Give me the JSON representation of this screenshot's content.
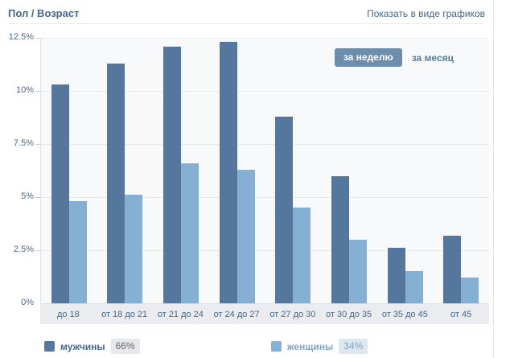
{
  "header": {
    "title": "Пол / Возраст",
    "link_label": "Показать в виде графиков"
  },
  "toolbar": {
    "week_label": "за неделю",
    "month_label": "за месяц",
    "active_period": "за неделю"
  },
  "chart_data": {
    "type": "bar",
    "title": "Пол / Возраст",
    "categories": [
      "до 18",
      "от 18 до 21",
      "от 21 до 24",
      "от 24 до 27",
      "от 27 до 30",
      "от 30 до 35",
      "от 35 до 45",
      "от 45"
    ],
    "series": [
      {
        "name": "мужчины",
        "color": "#55779d",
        "total_share": "66%",
        "values": [
          10.3,
          11.3,
          12.1,
          12.3,
          8.8,
          6.0,
          2.6,
          3.2
        ]
      },
      {
        "name": "женщины",
        "color": "#85afd3",
        "total_share": "34%",
        "values": [
          4.8,
          5.1,
          6.6,
          6.3,
          4.5,
          3.0,
          1.5,
          1.2
        ]
      }
    ],
    "xlabel": "",
    "ylabel": "",
    "ylim": [
      0,
      12.5
    ],
    "yticks": [
      "12.5%",
      "10%",
      "7.5%",
      "5%",
      "2.5%",
      "0%"
    ],
    "grid": "horizontal",
    "legend_position": "bottom"
  },
  "legend": {
    "items": [
      {
        "label": "мужчины",
        "value": "66%",
        "swatch": "#55779d",
        "badge_bg": "#e7e8ec",
        "badge_color": "#6b6b6b",
        "label_color": "#45688e"
      },
      {
        "label": "женщины",
        "value": "34%",
        "swatch": "#85afd3",
        "badge_bg": "#dce7f0",
        "badge_color": "#83a0bc",
        "label_color": "#7ea3c4"
      }
    ]
  }
}
